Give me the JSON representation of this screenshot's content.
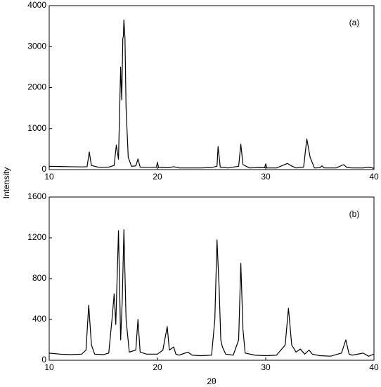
{
  "chart_data": [
    {
      "type": "line",
      "annotation": "(a)",
      "ylabel": "Intensity",
      "color": "#000000",
      "xlim": [
        10,
        40
      ],
      "xticks": [
        10,
        20,
        30,
        40
      ],
      "ylim": [
        0,
        4000
      ],
      "yticks": [
        0,
        1000,
        2000,
        3000,
        4000
      ],
      "x": [
        10,
        11,
        12,
        13,
        13.5,
        13.7,
        13.9,
        14.5,
        15,
        15.5,
        16,
        16.2,
        16.4,
        16.6,
        16.7,
        16.8,
        16.85,
        16.9,
        17.0,
        17.1,
        17.3,
        17.6,
        18,
        18.2,
        18.4,
        19,
        19.9,
        20,
        20.1,
        21,
        21.5,
        22,
        23,
        24,
        25,
        25.5,
        25.6,
        25.8,
        26.5,
        27.5,
        27.7,
        27.9,
        28.5,
        29.5,
        29.9,
        30,
        30.1,
        31,
        32,
        32.3,
        32.8,
        33.5,
        33.8,
        34.1,
        34.5,
        35,
        35.2,
        35.4,
        36.5,
        37.2,
        37.5,
        38,
        39,
        39.5,
        40
      ],
      "values": [
        80,
        75,
        70,
        65,
        70,
        430,
        100,
        60,
        55,
        60,
        100,
        600,
        250,
        2500,
        1700,
        3200,
        3250,
        3650,
        3200,
        1500,
        300,
        80,
        90,
        260,
        60,
        55,
        55,
        180,
        50,
        45,
        70,
        40,
        40,
        40,
        50,
        80,
        560,
        60,
        40,
        80,
        620,
        120,
        40,
        50,
        45,
        140,
        40,
        40,
        150,
        100,
        40,
        60,
        750,
        300,
        40,
        45,
        90,
        40,
        40,
        120,
        50,
        40,
        40,
        60,
        30
      ]
    },
    {
      "type": "line",
      "annotation": "(b)",
      "xlabel": "2θ",
      "color": "#000000",
      "xlim": [
        10,
        40
      ],
      "xticks": [
        10,
        20,
        30,
        40
      ],
      "ylim": [
        0,
        1600
      ],
      "yticks": [
        0,
        400,
        800,
        1200,
        1600
      ],
      "x": [
        10,
        11,
        12,
        13,
        13.4,
        13.65,
        13.9,
        14.2,
        15,
        15.5,
        15.8,
        16,
        16.15,
        16.4,
        16.6,
        16.75,
        16.9,
        17.1,
        17.4,
        18,
        18.2,
        18.4,
        19,
        20,
        20.5,
        20.9,
        21.1,
        21.5,
        21.7,
        22,
        22.8,
        23.2,
        24,
        25,
        25.3,
        25.5,
        25.7,
        25.85,
        26,
        26.3,
        27,
        27.5,
        27.7,
        27.9,
        28.1,
        29,
        30,
        31,
        31.8,
        32.1,
        32.4,
        32.8,
        33.2,
        33.6,
        34,
        34.3,
        35,
        36,
        37,
        37.4,
        37.7,
        38,
        39,
        39.5,
        40
      ],
      "values": [
        70,
        60,
        55,
        60,
        100,
        540,
        150,
        60,
        55,
        70,
        400,
        650,
        350,
        1270,
        200,
        600,
        1280,
        400,
        80,
        100,
        400,
        80,
        60,
        60,
        100,
        330,
        100,
        130,
        60,
        50,
        80,
        50,
        45,
        50,
        400,
        1180,
        700,
        200,
        130,
        60,
        50,
        200,
        950,
        300,
        70,
        50,
        45,
        50,
        150,
        510,
        150,
        80,
        110,
        60,
        100,
        60,
        45,
        40,
        70,
        200,
        60,
        50,
        70,
        40,
        60
      ]
    }
  ]
}
